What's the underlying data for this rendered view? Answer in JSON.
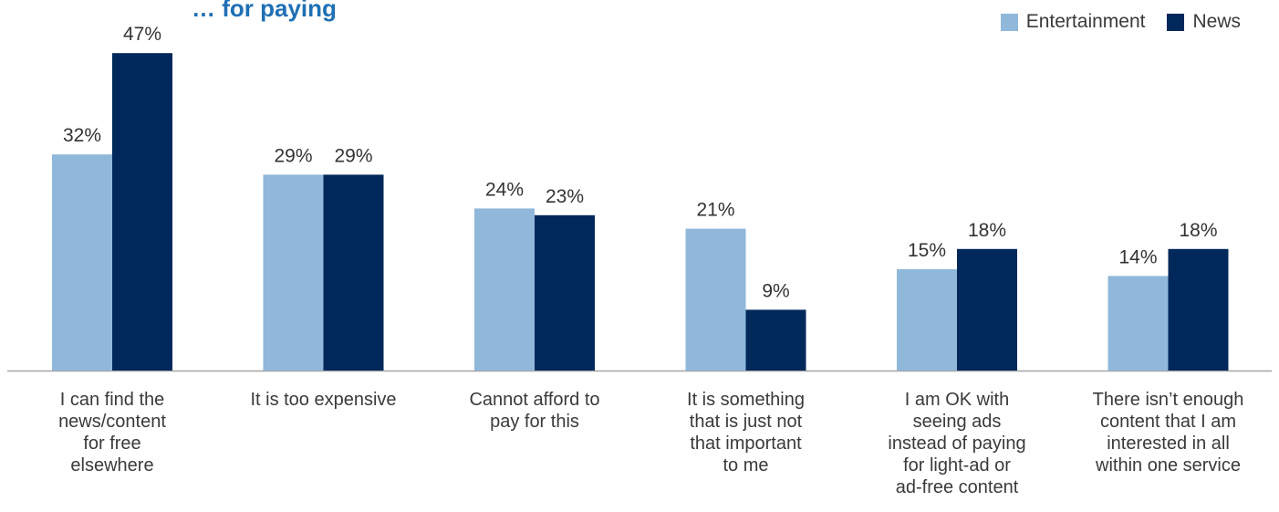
{
  "chart_data": {
    "type": "bar",
    "title": "… for paying",
    "categories": [
      "I can find the\nnews/content\nfor free\nelsewhere",
      "It is too expensive",
      "Cannot afford to\npay for this",
      "It is something\nthat is just not\nthat important\nto me",
      "I am OK with\nseeing ads\ninstead of paying\nfor light-ad or\nad-free content",
      "There isn’t enough\ncontent that I am\ninterested in all\nwithin one service"
    ],
    "series": [
      {
        "name": "Entertainment",
        "color": "#8fb8da",
        "values": [
          32,
          29,
          24,
          21,
          15,
          14
        ],
        "labels": [
          "32%",
          "29%",
          "24%",
          "21%",
          "15%",
          "14%"
        ]
      },
      {
        "name": "News",
        "color": "#00285a",
        "values": [
          47,
          29,
          23,
          9,
          18,
          18
        ],
        "labels": [
          "47%",
          "29%",
          "23%",
          "9%",
          "18%",
          "18%"
        ]
      }
    ],
    "ylim": [
      0,
      50
    ],
    "grid": false,
    "legend_position": "top-right",
    "xlabel": "",
    "ylabel": ""
  },
  "colors": {
    "title": "#1e6fb5",
    "axis": "#a6a6a6",
    "text": "#333333"
  }
}
